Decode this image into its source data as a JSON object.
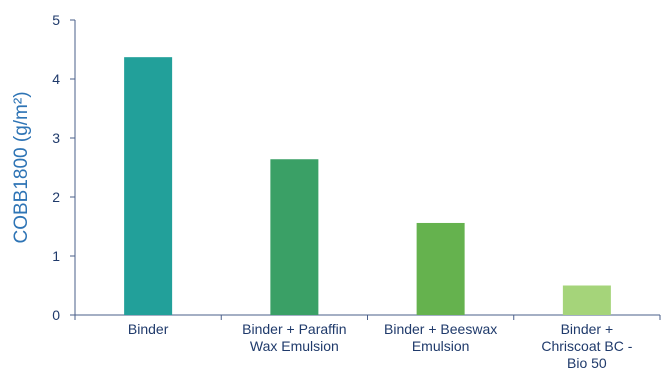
{
  "chart_data": {
    "type": "bar",
    "title": "",
    "xlabel": "",
    "ylabel": "COBB1800 (g/m²)",
    "ylim": [
      0,
      5
    ],
    "yticks": [
      0,
      1,
      2,
      3,
      4,
      5
    ],
    "categories": [
      "Binder",
      "Binder + Paraffin Wax Emulsion",
      "Binder + Beeswax Emulsion",
      "Binder + Chriscoat BC - Bio 50"
    ],
    "category_lines": [
      [
        "Binder"
      ],
      [
        "Binder + Paraffin",
        "Wax Emulsion"
      ],
      [
        "Binder + Beeswax",
        "Emulsion"
      ],
      [
        "Binder +",
        "Chriscoat BC -",
        "Bio 50"
      ]
    ],
    "values": [
      4.37,
      2.64,
      1.56,
      0.5
    ],
    "colors": [
      "#22a09a",
      "#3aa066",
      "#65b24e",
      "#a5d47a"
    ],
    "grid": false,
    "legend": "none"
  }
}
